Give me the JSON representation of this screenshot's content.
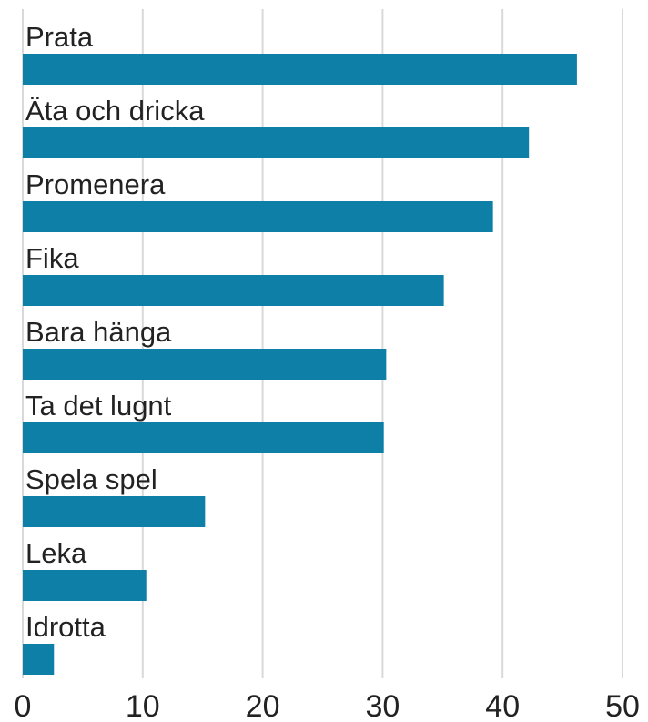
{
  "chart_data": {
    "type": "bar",
    "orientation": "horizontal",
    "categories": [
      "Prata",
      "Äta och dricka",
      "Promenera",
      "Fika",
      "Bara hänga",
      "Ta det lugnt",
      "Spela spel",
      "Leka",
      "Idrotta"
    ],
    "values": [
      46.2,
      42.2,
      39.2,
      35.1,
      30.3,
      30.1,
      15.2,
      10.3,
      2.6
    ],
    "color": "#0e80a8",
    "xlim": [
      0,
      50
    ],
    "xticks": [
      0,
      10,
      20,
      30,
      40,
      50
    ],
    "grid": true
  }
}
